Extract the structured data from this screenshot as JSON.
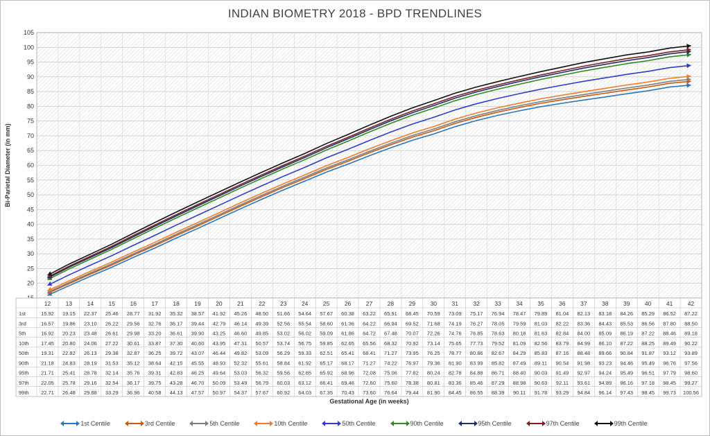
{
  "chart_data": {
    "type": "line",
    "title": "INDIAN BIOMETRY 2018 - BPD TRENDLINES",
    "xlabel": "Gestational Age (in weeks)",
    "ylabel": "Bi-Parietal Diameter (in mm)",
    "ylim": [
      15,
      105
    ],
    "yticks": [
      15,
      20,
      25,
      30,
      35,
      40,
      45,
      50,
      55,
      60,
      65,
      70,
      75,
      80,
      85,
      90,
      95,
      100,
      105
    ],
    "x": [
      12,
      13,
      14,
      15,
      16,
      17,
      18,
      19,
      20,
      21,
      22,
      23,
      24,
      25,
      26,
      27,
      28,
      29,
      30,
      31,
      32,
      33,
      34,
      35,
      36,
      37,
      38,
      39,
      40,
      41,
      42
    ],
    "grid": true,
    "legend_position": "bottom",
    "series": [
      {
        "name": "1st Centile",
        "row_label": "1st",
        "color": "#2E75B6",
        "values": [
          15.92,
          19.15,
          22.37,
          25.46,
          28.77,
          31.92,
          35.32,
          38.57,
          41.92,
          45.26,
          48.5,
          51.66,
          54.64,
          57.67,
          60.38,
          63.22,
          65.91,
          68.45,
          70.59,
          73.09,
          75.17,
          76.94,
          78.47,
          79.89,
          81.04,
          82.13,
          83.18,
          84.26,
          85.29,
          86.52,
          87.22
        ]
      },
      {
        "name": "3rd Centile",
        "row_label": "3rd",
        "color": "#C55A11",
        "values": [
          16.57,
          19.86,
          23.1,
          26.22,
          29.56,
          32.76,
          36.17,
          39.44,
          42.79,
          46.14,
          49.39,
          52.56,
          55.54,
          58.6,
          61.36,
          64.22,
          66.94,
          69.52,
          71.68,
          74.19,
          76.27,
          78.05,
          79.59,
          81.03,
          82.22,
          83.36,
          84.43,
          85.53,
          86.56,
          87.8,
          88.5
        ]
      },
      {
        "name": "5th Centile",
        "row_label": "5th",
        "color": "#7F7F7F",
        "values": [
          16.92,
          20.23,
          23.48,
          26.61,
          29.98,
          33.2,
          36.61,
          39.9,
          43.25,
          46.6,
          49.85,
          53.02,
          56.02,
          59.09,
          61.86,
          64.72,
          67.48,
          70.07,
          72.26,
          74.76,
          76.85,
          78.63,
          80.18,
          81.63,
          82.84,
          84.0,
          85.09,
          86.19,
          87.22,
          88.46,
          89.18
        ]
      },
      {
        "name": "10th Centile",
        "row_label": "10th",
        "color": "#ED7D31",
        "values": [
          17.45,
          20.8,
          24.06,
          27.22,
          30.61,
          33.87,
          37.3,
          40.6,
          43.95,
          47.31,
          50.57,
          53.74,
          56.75,
          59.85,
          62.65,
          65.56,
          68.32,
          70.92,
          73.14,
          75.65,
          77.73,
          79.52,
          81.09,
          82.56,
          83.79,
          84.99,
          86.1,
          87.22,
          88.25,
          89.49,
          90.22
        ]
      },
      {
        "name": "50th Centile",
        "row_label": "50th",
        "color": "#2F3DC4",
        "values": [
          19.31,
          22.82,
          26.13,
          29.38,
          32.87,
          36.25,
          39.72,
          43.07,
          46.44,
          49.82,
          53.09,
          56.29,
          59.33,
          62.51,
          65.41,
          68.41,
          71.27,
          73.95,
          76.25,
          78.77,
          80.86,
          82.67,
          84.29,
          85.83,
          87.16,
          88.48,
          89.66,
          90.84,
          91.87,
          93.12,
          93.89
        ]
      },
      {
        "name": "90th Centile",
        "row_label": "90th",
        "color": "#2E8B1E",
        "values": [
          21.18,
          24.83,
          28.19,
          31.53,
          35.12,
          38.64,
          42.15,
          45.55,
          48.93,
          52.32,
          55.61,
          58.84,
          61.92,
          65.17,
          68.17,
          71.27,
          74.22,
          76.97,
          79.36,
          81.9,
          83.99,
          85.82,
          87.49,
          89.11,
          90.54,
          91.98,
          93.23,
          94.46,
          95.49,
          96.76,
          97.56
        ]
      },
      {
        "name": "95th Centile",
        "row_label": "95th",
        "color": "#1F2E6B",
        "values": [
          21.71,
          25.41,
          28.78,
          32.14,
          35.76,
          39.31,
          42.83,
          46.25,
          49.64,
          53.03,
          56.32,
          59.56,
          62.65,
          65.92,
          68.96,
          72.08,
          75.06,
          77.82,
          80.24,
          82.78,
          84.88,
          86.71,
          88.4,
          90.03,
          91.49,
          92.97,
          94.24,
          95.49,
          96.51,
          97.79,
          98.6
        ]
      },
      {
        "name": "97th Centile",
        "row_label": "97th",
        "color": "#7B1F1F",
        "values": [
          22.05,
          25.78,
          29.16,
          32.54,
          36.17,
          39.75,
          43.28,
          46.7,
          50.09,
          53.49,
          56.79,
          60.03,
          63.12,
          66.41,
          69.46,
          72.6,
          75.6,
          78.38,
          80.81,
          83.36,
          85.46,
          87.29,
          88.98,
          90.63,
          92.11,
          93.61,
          94.89,
          96.16,
          97.18,
          98.45,
          99.27
        ]
      },
      {
        "name": "99th Centile",
        "row_label": "99th",
        "color": "#111111",
        "values": [
          22.71,
          26.48,
          29.88,
          33.29,
          36.96,
          40.58,
          44.13,
          47.57,
          50.97,
          54.37,
          57.67,
          60.92,
          64.03,
          67.35,
          70.43,
          73.6,
          76.64,
          79.44,
          81.9,
          84.45,
          86.55,
          88.39,
          90.11,
          91.78,
          93.29,
          94.84,
          96.14,
          97.43,
          98.45,
          99.73,
          100.56
        ]
      }
    ]
  }
}
